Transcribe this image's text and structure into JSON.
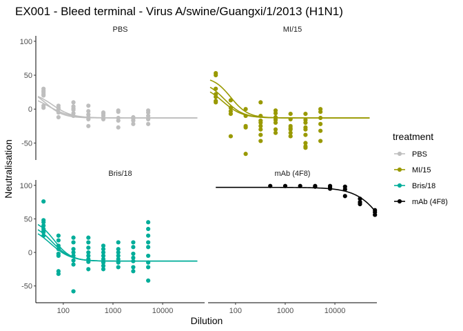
{
  "chart_data": {
    "type": "scatter",
    "title": "EX001 - Bleed terminal - Virus A/swine/Guangxi/1/2013 (H1N1)",
    "xlabel": "Dilution",
    "ylabel": "Neutralisation",
    "x_scale": "log10",
    "xlim": [
      28,
      70000
    ],
    "x_ticks": [
      100,
      1000,
      10000
    ],
    "x_tick_labels": [
      "100",
      "1000",
      "10000"
    ],
    "ylim": [
      -75,
      108
    ],
    "y_ticks": [
      100,
      50,
      0,
      -50
    ],
    "y_tick_labels": [
      "100",
      "50",
      "0",
      "-50"
    ],
    "grid": false,
    "legend": {
      "title": "treatment",
      "placement": "right",
      "entries": [
        "PBS",
        "MI/15",
        "Bris/18",
        "mAb (4F8)"
      ]
    },
    "panels": [
      {
        "name": "PBS",
        "color": "#bebebe",
        "points": [
          [
            40,
            30
          ],
          [
            40,
            27
          ],
          [
            40,
            25
          ],
          [
            40,
            22
          ],
          [
            40,
            20
          ],
          [
            40,
            5
          ],
          [
            40,
            2
          ],
          [
            80,
            5
          ],
          [
            80,
            2
          ],
          [
            80,
            0
          ],
          [
            80,
            -5
          ],
          [
            80,
            -12
          ],
          [
            160,
            10
          ],
          [
            160,
            4
          ],
          [
            160,
            1
          ],
          [
            160,
            -1
          ],
          [
            160,
            -6
          ],
          [
            160,
            -10
          ],
          [
            320,
            5
          ],
          [
            320,
            -3
          ],
          [
            320,
            -8
          ],
          [
            320,
            -12
          ],
          [
            320,
            -15
          ],
          [
            320,
            -25
          ],
          [
            640,
            -5
          ],
          [
            640,
            -7
          ],
          [
            640,
            -10
          ],
          [
            640,
            -15
          ],
          [
            1280,
            -2
          ],
          [
            1280,
            -4
          ],
          [
            1280,
            -13
          ],
          [
            1280,
            -17
          ],
          [
            1280,
            -27
          ],
          [
            2560,
            -12
          ],
          [
            2560,
            -14
          ],
          [
            2560,
            -17
          ],
          [
            2560,
            -22
          ],
          [
            5120,
            -2
          ],
          [
            5120,
            -5
          ],
          [
            5120,
            -10
          ],
          [
            5120,
            -15
          ],
          [
            5120,
            -22
          ]
        ],
        "curves": [
          {
            "top": 30,
            "bottom": -13,
            "ic50": 45,
            "hill": 2.5
          },
          {
            "top": 26,
            "bottom": -13,
            "ic50": 60,
            "hill": 2.2
          },
          {
            "top": 22,
            "bottom": -13,
            "ic50": 50,
            "hill": 2.0
          }
        ]
      },
      {
        "name": "MI/15",
        "color": "#999900",
        "points": [
          [
            40,
            53
          ],
          [
            40,
            50
          ],
          [
            40,
            30
          ],
          [
            40,
            22
          ],
          [
            40,
            18
          ],
          [
            40,
            12
          ],
          [
            40,
            10
          ],
          [
            80,
            13
          ],
          [
            80,
            2
          ],
          [
            80,
            -3
          ],
          [
            80,
            -7
          ],
          [
            80,
            -40
          ],
          [
            160,
            0
          ],
          [
            160,
            -10
          ],
          [
            160,
            -25
          ],
          [
            160,
            -27
          ],
          [
            160,
            -66
          ],
          [
            320,
            10
          ],
          [
            320,
            -10
          ],
          [
            320,
            -17
          ],
          [
            320,
            -20
          ],
          [
            320,
            -25
          ],
          [
            320,
            -30
          ],
          [
            320,
            -38
          ],
          [
            320,
            -47
          ],
          [
            640,
            -2
          ],
          [
            640,
            -6
          ],
          [
            640,
            -12
          ],
          [
            640,
            -13
          ],
          [
            640,
            -16
          ],
          [
            640,
            -20
          ],
          [
            640,
            -30
          ],
          [
            640,
            -35
          ],
          [
            1280,
            -7
          ],
          [
            1280,
            -15
          ],
          [
            1280,
            -25
          ],
          [
            1280,
            -28
          ],
          [
            1280,
            -30
          ],
          [
            1280,
            -35
          ],
          [
            1280,
            -40
          ],
          [
            2560,
            -7
          ],
          [
            2560,
            -16
          ],
          [
            2560,
            -20
          ],
          [
            2560,
            -27
          ],
          [
            2560,
            -30
          ],
          [
            2560,
            -38
          ],
          [
            2560,
            -50
          ],
          [
            2560,
            -55
          ],
          [
            2560,
            -57
          ],
          [
            5120,
            0
          ],
          [
            5120,
            -4
          ],
          [
            5120,
            -13
          ],
          [
            5120,
            -22
          ],
          [
            5120,
            -32
          ],
          [
            5120,
            -47
          ]
        ],
        "curves": [
          {
            "top": 48,
            "bottom": -13,
            "ic50": 80,
            "hill": 2.5
          },
          {
            "top": 42,
            "bottom": -13,
            "ic50": 60,
            "hill": 2.3
          },
          {
            "top": 36,
            "bottom": -13,
            "ic50": 55,
            "hill": 2.2
          }
        ]
      },
      {
        "name": "Bris/18",
        "color": "#00ad9a",
        "points": [
          [
            40,
            76
          ],
          [
            40,
            48
          ],
          [
            40,
            45
          ],
          [
            40,
            40
          ],
          [
            40,
            35
          ],
          [
            40,
            32
          ],
          [
            40,
            30
          ],
          [
            40,
            25
          ],
          [
            80,
            25
          ],
          [
            80,
            18
          ],
          [
            80,
            10
          ],
          [
            80,
            5
          ],
          [
            80,
            -2
          ],
          [
            80,
            -5
          ],
          [
            80,
            -28
          ],
          [
            80,
            -32
          ],
          [
            160,
            22
          ],
          [
            160,
            15
          ],
          [
            160,
            5
          ],
          [
            160,
            0
          ],
          [
            160,
            -5
          ],
          [
            160,
            -12
          ],
          [
            160,
            -18
          ],
          [
            160,
            -58
          ],
          [
            320,
            22
          ],
          [
            320,
            15
          ],
          [
            320,
            7
          ],
          [
            320,
            0
          ],
          [
            320,
            -5
          ],
          [
            320,
            -10
          ],
          [
            320,
            -14
          ],
          [
            320,
            -25
          ],
          [
            640,
            10
          ],
          [
            640,
            5
          ],
          [
            640,
            0
          ],
          [
            640,
            -5
          ],
          [
            640,
            -10
          ],
          [
            640,
            -15
          ],
          [
            640,
            -20
          ],
          [
            640,
            -25
          ],
          [
            1280,
            15
          ],
          [
            1280,
            5
          ],
          [
            1280,
            0
          ],
          [
            1280,
            -5
          ],
          [
            1280,
            -10
          ],
          [
            1280,
            -15
          ],
          [
            1280,
            -22
          ],
          [
            2560,
            15
          ],
          [
            2560,
            8
          ],
          [
            2560,
            -2
          ],
          [
            2560,
            -8
          ],
          [
            2560,
            -13
          ],
          [
            2560,
            -22
          ],
          [
            2560,
            -28
          ],
          [
            5120,
            45
          ],
          [
            5120,
            35
          ],
          [
            5120,
            25
          ],
          [
            5120,
            15
          ],
          [
            5120,
            8
          ],
          [
            5120,
            -5
          ],
          [
            5120,
            -15
          ],
          [
            5120,
            -22
          ],
          [
            5120,
            -42
          ]
        ],
        "curves": [
          {
            "top": 50,
            "bottom": -13,
            "ic50": 65,
            "hill": 2.5
          },
          {
            "top": 44,
            "bottom": -13,
            "ic50": 60,
            "hill": 2.3
          },
          {
            "top": 40,
            "bottom": -13,
            "ic50": 55,
            "hill": 2.1
          }
        ]
      },
      {
        "name": "mAb (4F8)",
        "color": "#000000",
        "points": [
          [
            500,
            99
          ],
          [
            1000,
            99
          ],
          [
            2000,
            99
          ],
          [
            4000,
            99
          ],
          [
            4000,
            98
          ],
          [
            8000,
            99
          ],
          [
            8000,
            97
          ],
          [
            8000,
            95
          ],
          [
            16000,
            98
          ],
          [
            16000,
            94
          ],
          [
            16000,
            84
          ],
          [
            32000,
            80
          ],
          [
            32000,
            75
          ],
          [
            32000,
            72
          ],
          [
            64000,
            63
          ],
          [
            64000,
            60
          ],
          [
            64000,
            56
          ]
        ],
        "x_range": [
          40,
          64000
        ],
        "curves": [
          {
            "top": 97,
            "bottom": -40,
            "ic50": 130000,
            "hill": 1.5
          }
        ]
      }
    ]
  }
}
